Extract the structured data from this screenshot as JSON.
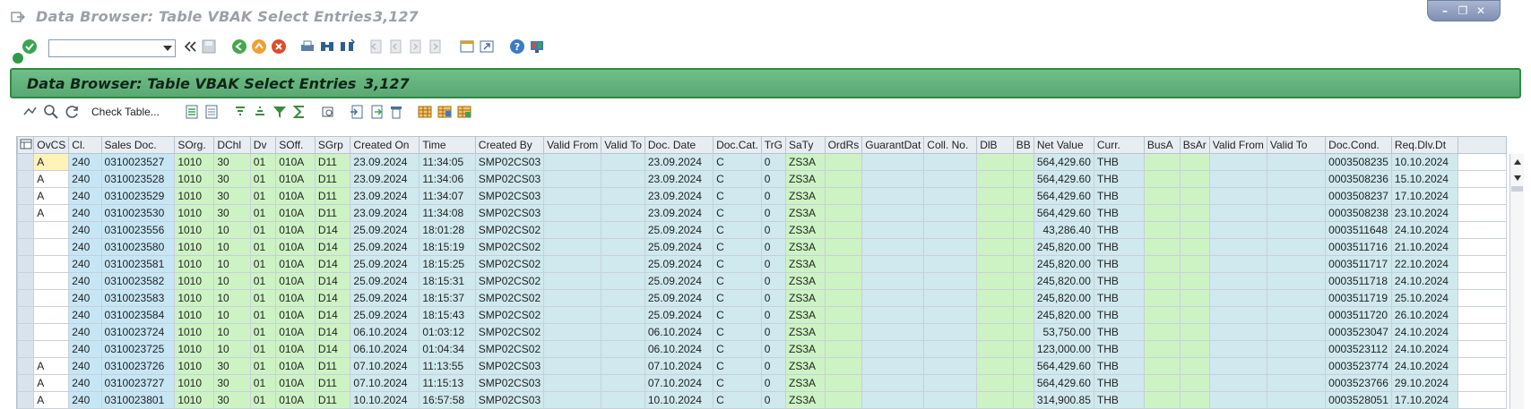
{
  "window": {
    "title": "Data Browser: Table VBAK Select Entries",
    "count": "3,127"
  },
  "header": {
    "title": "Data Browser: Table VBAK Select Entries",
    "count": "3,127"
  },
  "toolbar": {
    "check_table_label": "Check Table...",
    "command_field_value": ""
  },
  "columns": [
    "OvCS",
    "Cl.",
    "Sales Doc.",
    "SOrg.",
    "DChl",
    "Dv",
    "SOff.",
    "SGrp",
    "Created On",
    "Time",
    "Created By",
    "Valid From",
    "Valid To",
    "Doc. Date",
    "Doc.Cat.",
    "TrG",
    "SaTy",
    "OrdRs",
    "GuarantDat",
    "Coll. No.",
    "DlB",
    "BB",
    "Net Value",
    "Curr.",
    "BusA",
    "BsAr",
    "Valid From",
    "Valid To",
    "Doc.Cond.",
    "Req.Dlv.Dt"
  ],
  "rows": [
    [
      "A",
      "240",
      "0310023527",
      "1010",
      "30",
      "01",
      "010A",
      "D11",
      "23.09.2024",
      "11:34:05",
      "SMP02CS03",
      "",
      "",
      "23.09.2024",
      "C",
      "0",
      "ZS3A",
      "",
      "",
      "",
      "",
      "",
      "564,429.60",
      "THB",
      "",
      "",
      "",
      "",
      "0003508235",
      "10.10.2024"
    ],
    [
      "A",
      "240",
      "0310023528",
      "1010",
      "30",
      "01",
      "010A",
      "D11",
      "23.09.2024",
      "11:34:06",
      "SMP02CS03",
      "",
      "",
      "23.09.2024",
      "C",
      "0",
      "ZS3A",
      "",
      "",
      "",
      "",
      "",
      "564,429.60",
      "THB",
      "",
      "",
      "",
      "",
      "0003508236",
      "15.10.2024"
    ],
    [
      "A",
      "240",
      "0310023529",
      "1010",
      "30",
      "01",
      "010A",
      "D11",
      "23.09.2024",
      "11:34:07",
      "SMP02CS03",
      "",
      "",
      "23.09.2024",
      "C",
      "0",
      "ZS3A",
      "",
      "",
      "",
      "",
      "",
      "564,429.60",
      "THB",
      "",
      "",
      "",
      "",
      "0003508237",
      "17.10.2024"
    ],
    [
      "A",
      "240",
      "0310023530",
      "1010",
      "30",
      "01",
      "010A",
      "D11",
      "23.09.2024",
      "11:34:08",
      "SMP02CS03",
      "",
      "",
      "23.09.2024",
      "C",
      "0",
      "ZS3A",
      "",
      "",
      "",
      "",
      "",
      "564,429.60",
      "THB",
      "",
      "",
      "",
      "",
      "0003508238",
      "23.10.2024"
    ],
    [
      "",
      "240",
      "0310023556",
      "1010",
      "10",
      "01",
      "010A",
      "D14",
      "25.09.2024",
      "18:01:28",
      "SMP02CS02",
      "",
      "",
      "25.09.2024",
      "C",
      "0",
      "ZS3A",
      "",
      "",
      "",
      "",
      "",
      "43,286.40",
      "THB",
      "",
      "",
      "",
      "",
      "0003511648",
      "24.10.2024"
    ],
    [
      "",
      "240",
      "0310023580",
      "1010",
      "10",
      "01",
      "010A",
      "D14",
      "25.09.2024",
      "18:15:19",
      "SMP02CS02",
      "",
      "",
      "25.09.2024",
      "C",
      "0",
      "ZS3A",
      "",
      "",
      "",
      "",
      "",
      "245,820.00",
      "THB",
      "",
      "",
      "",
      "",
      "0003511716",
      "21.10.2024"
    ],
    [
      "",
      "240",
      "0310023581",
      "1010",
      "10",
      "01",
      "010A",
      "D14",
      "25.09.2024",
      "18:15:25",
      "SMP02CS02",
      "",
      "",
      "25.09.2024",
      "C",
      "0",
      "ZS3A",
      "",
      "",
      "",
      "",
      "",
      "245,820.00",
      "THB",
      "",
      "",
      "",
      "",
      "0003511717",
      "22.10.2024"
    ],
    [
      "",
      "240",
      "0310023582",
      "1010",
      "10",
      "01",
      "010A",
      "D14",
      "25.09.2024",
      "18:15:31",
      "SMP02CS02",
      "",
      "",
      "25.09.2024",
      "C",
      "0",
      "ZS3A",
      "",
      "",
      "",
      "",
      "",
      "245,820.00",
      "THB",
      "",
      "",
      "",
      "",
      "0003511718",
      "24.10.2024"
    ],
    [
      "",
      "240",
      "0310023583",
      "1010",
      "10",
      "01",
      "010A",
      "D14",
      "25.09.2024",
      "18:15:37",
      "SMP02CS02",
      "",
      "",
      "25.09.2024",
      "C",
      "0",
      "ZS3A",
      "",
      "",
      "",
      "",
      "",
      "245,820.00",
      "THB",
      "",
      "",
      "",
      "",
      "0003511719",
      "25.10.2024"
    ],
    [
      "",
      "240",
      "0310023584",
      "1010",
      "10",
      "01",
      "010A",
      "D14",
      "25.09.2024",
      "18:15:43",
      "SMP02CS02",
      "",
      "",
      "25.09.2024",
      "C",
      "0",
      "ZS3A",
      "",
      "",
      "",
      "",
      "",
      "245,820.00",
      "THB",
      "",
      "",
      "",
      "",
      "0003511720",
      "26.10.2024"
    ],
    [
      "",
      "240",
      "0310023724",
      "1010",
      "10",
      "01",
      "010A",
      "D14",
      "06.10.2024",
      "01:03:12",
      "SMP02CS02",
      "",
      "",
      "06.10.2024",
      "C",
      "0",
      "ZS3A",
      "",
      "",
      "",
      "",
      "",
      "53,750.00",
      "THB",
      "",
      "",
      "",
      "",
      "0003523047",
      "24.10.2024"
    ],
    [
      "",
      "240",
      "0310023725",
      "1010",
      "10",
      "01",
      "010A",
      "D14",
      "06.10.2024",
      "01:04:34",
      "SMP02CS02",
      "",
      "",
      "06.10.2024",
      "C",
      "0",
      "ZS3A",
      "",
      "",
      "",
      "",
      "",
      "123,000.00",
      "THB",
      "",
      "",
      "",
      "",
      "0003523112",
      "24.10.2024"
    ],
    [
      "A",
      "240",
      "0310023726",
      "1010",
      "30",
      "01",
      "010A",
      "D11",
      "07.10.2024",
      "11:13:55",
      "SMP02CS03",
      "",
      "",
      "07.10.2024",
      "C",
      "0",
      "ZS3A",
      "",
      "",
      "",
      "",
      "",
      "564,429.60",
      "THB",
      "",
      "",
      "",
      "",
      "0003523774",
      "24.10.2024"
    ],
    [
      "A",
      "240",
      "0310023727",
      "1010",
      "30",
      "01",
      "010A",
      "D11",
      "07.10.2024",
      "11:15:13",
      "SMP02CS03",
      "",
      "",
      "07.10.2024",
      "C",
      "0",
      "ZS3A",
      "",
      "",
      "",
      "",
      "",
      "564,429.60",
      "THB",
      "",
      "",
      "",
      "",
      "0003523766",
      "29.10.2024"
    ],
    [
      "A",
      "240",
      "0310023801",
      "1010",
      "30",
      "01",
      "010A",
      "D11",
      "10.10.2024",
      "16:57:58",
      "SMP02CS03",
      "",
      "",
      "10.10.2024",
      "C",
      "0",
      "ZS3A",
      "",
      "",
      "",
      "",
      "",
      "314,900.85",
      "THB",
      "",
      "",
      "",
      "",
      "0003528051",
      "17.10.2024"
    ]
  ]
}
